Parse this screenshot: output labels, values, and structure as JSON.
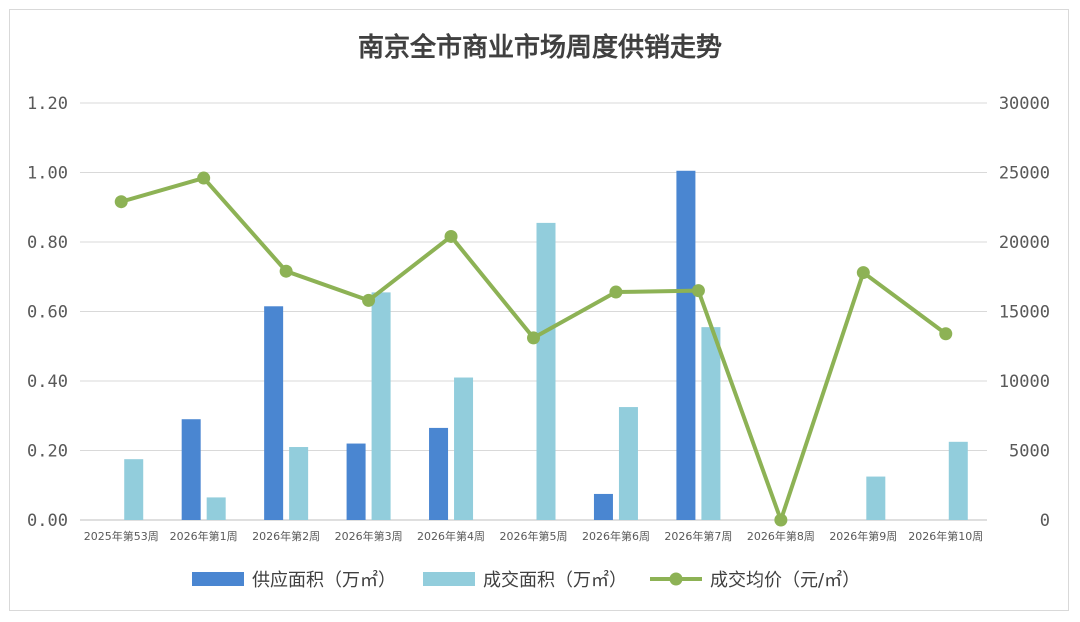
{
  "chart_data": {
    "type": "bar",
    "title": "南京全市商业市场周度供销走势",
    "categories": [
      "2025年第53周",
      "2026年第1周",
      "2026年第2周",
      "2026年第3周",
      "2026年第4周",
      "2026年第5周",
      "2026年第6周",
      "2026年第7周",
      "2026年第8周",
      "2026年第9周",
      "2026年第10周"
    ],
    "y_left": {
      "ylim": [
        0,
        1.2
      ],
      "ticks": [
        "0.00",
        "0.20",
        "0.40",
        "0.60",
        "0.80",
        "1.00",
        "1.20"
      ]
    },
    "y_right": {
      "ylim": [
        0,
        30000
      ],
      "ticks": [
        "0",
        "5000",
        "10000",
        "15000",
        "20000",
        "25000",
        "30000"
      ]
    },
    "grid": true,
    "legend_position": "bottom",
    "series": [
      {
        "name": "供应面积（万㎡）",
        "type": "bar",
        "axis": "left",
        "color": "#4a86d1",
        "values": [
          0,
          0.29,
          0.615,
          0.22,
          0.265,
          0,
          0.075,
          1.005,
          0,
          0,
          0
        ]
      },
      {
        "name": "成交面积（万㎡）",
        "type": "bar",
        "axis": "left",
        "color": "#92cddc",
        "values": [
          0.175,
          0.065,
          0.21,
          0.655,
          0.41,
          0.855,
          0.325,
          0.555,
          0,
          0.125,
          0.225
        ]
      },
      {
        "name": "成交均价（元/㎡）",
        "type": "line",
        "axis": "right",
        "color": "#8db255",
        "values": [
          22900,
          24600,
          17900,
          15800,
          20400,
          13100,
          16400,
          16500,
          0,
          17800,
          13400
        ]
      }
    ]
  }
}
